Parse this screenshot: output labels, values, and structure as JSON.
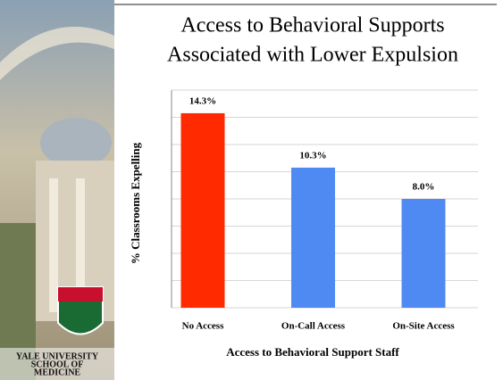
{
  "chart_data": {
    "type": "bar",
    "title_lines": [
      "Access to Behavioral Supports",
      "Associated with Lower Expulsion"
    ],
    "x_label": "Access to Behavioral Support Staff",
    "y_label": "% Classrooms Expelling",
    "categories": [
      "No Access",
      "On-Call Access",
      "On-Site Access"
    ],
    "values": [
      14.3,
      10.3,
      8.0
    ],
    "value_labels": [
      "14.3%",
      "10.3%",
      "8.0%"
    ],
    "colors": [
      "#ff2a00",
      "#4f8af2",
      "#4f8af2"
    ],
    "ylim": [
      0,
      16
    ],
    "yticks": [
      0,
      2,
      4,
      6,
      8,
      10,
      12,
      14,
      16
    ],
    "grid": true
  },
  "branding": {
    "lines": [
      "YALE UNIVERSITY",
      "SCHOOL OF",
      "MEDICINE"
    ]
  }
}
